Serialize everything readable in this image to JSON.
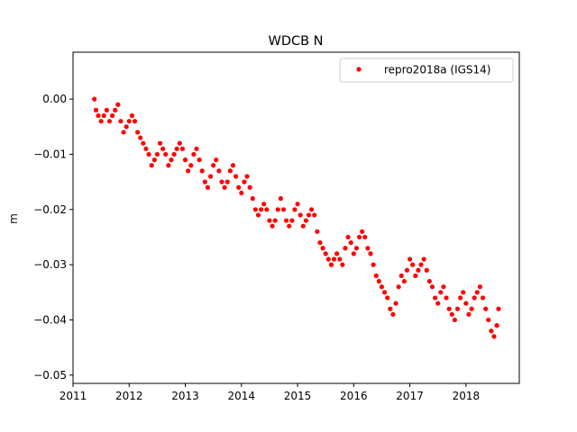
{
  "chart_data": {
    "type": "scatter",
    "title": "WDCB N",
    "xlabel": "",
    "ylabel": "m",
    "xlim": [
      2011.0,
      2018.95
    ],
    "ylim": [
      -0.0515,
      0.0085
    ],
    "xticks": [
      2011,
      2012,
      2013,
      2014,
      2015,
      2016,
      2017,
      2018
    ],
    "xtick_labels": [
      "2011",
      "2012",
      "2013",
      "2014",
      "2015",
      "2016",
      "2017",
      "2018"
    ],
    "yticks": [
      0.0,
      -0.01,
      -0.02,
      -0.03,
      -0.04,
      -0.05
    ],
    "ytick_labels": [
      "0.00",
      "−0.01",
      "−0.02",
      "−0.03",
      "−0.04",
      "−0.05"
    ],
    "grid": false,
    "legend_position": "top-right",
    "series": [
      {
        "name": "repro2018a (IGS14)",
        "color": "#ff0000",
        "marker": "circle",
        "x": [
          2011.38,
          2011.41,
          2011.45,
          2011.5,
          2011.55,
          2011.6,
          2011.65,
          2011.7,
          2011.75,
          2011.8,
          2011.85,
          2011.9,
          2011.95,
          2012.0,
          2012.05,
          2012.1,
          2012.15,
          2012.2,
          2012.25,
          2012.3,
          2012.35,
          2012.4,
          2012.45,
          2012.5,
          2012.55,
          2012.6,
          2012.65,
          2012.7,
          2012.75,
          2012.8,
          2012.85,
          2012.9,
          2012.95,
          2013.0,
          2013.05,
          2013.1,
          2013.15,
          2013.2,
          2013.25,
          2013.3,
          2013.35,
          2013.4,
          2013.45,
          2013.5,
          2013.55,
          2013.6,
          2013.65,
          2013.7,
          2013.75,
          2013.8,
          2013.85,
          2013.9,
          2013.95,
          2014.0,
          2014.05,
          2014.1,
          2014.15,
          2014.2,
          2014.25,
          2014.3,
          2014.35,
          2014.4,
          2014.45,
          2014.5,
          2014.55,
          2014.6,
          2014.65,
          2014.7,
          2014.75,
          2014.8,
          2014.85,
          2014.9,
          2014.95,
          2015.0,
          2015.05,
          2015.1,
          2015.15,
          2015.2,
          2015.25,
          2015.3,
          2015.35,
          2015.4,
          2015.45,
          2015.5,
          2015.55,
          2015.6,
          2015.65,
          2015.7,
          2015.75,
          2015.8,
          2015.85,
          2015.9,
          2015.95,
          2016.0,
          2016.05,
          2016.1,
          2016.15,
          2016.2,
          2016.25,
          2016.3,
          2016.35,
          2016.4,
          2016.45,
          2016.5,
          2016.55,
          2016.6,
          2016.65,
          2016.7,
          2016.75,
          2016.8,
          2016.85,
          2016.9,
          2016.95,
          2017.0,
          2017.05,
          2017.1,
          2017.15,
          2017.2,
          2017.25,
          2017.3,
          2017.35,
          2017.4,
          2017.45,
          2017.5,
          2017.55,
          2017.6,
          2017.65,
          2017.7,
          2017.75,
          2017.8,
          2017.85,
          2017.9,
          2017.95,
          2018.0,
          2018.05,
          2018.1,
          2018.15,
          2018.2,
          2018.25,
          2018.3,
          2018.35,
          2018.4,
          2018.45,
          2018.5,
          2018.55,
          2018.58
        ],
        "y": [
          0.0,
          -0.002,
          -0.003,
          -0.004,
          -0.003,
          -0.002,
          -0.004,
          -0.003,
          -0.002,
          -0.001,
          -0.004,
          -0.006,
          -0.005,
          -0.004,
          -0.003,
          -0.004,
          -0.006,
          -0.007,
          -0.008,
          -0.009,
          -0.01,
          -0.012,
          -0.011,
          -0.01,
          -0.008,
          -0.009,
          -0.01,
          -0.012,
          -0.011,
          -0.01,
          -0.009,
          -0.008,
          -0.009,
          -0.011,
          -0.013,
          -0.012,
          -0.01,
          -0.009,
          -0.011,
          -0.013,
          -0.015,
          -0.016,
          -0.014,
          -0.012,
          -0.011,
          -0.013,
          -0.015,
          -0.016,
          -0.015,
          -0.013,
          -0.012,
          -0.014,
          -0.016,
          -0.017,
          -0.015,
          -0.014,
          -0.016,
          -0.018,
          -0.02,
          -0.021,
          -0.02,
          -0.019,
          -0.02,
          -0.022,
          -0.023,
          -0.022,
          -0.02,
          -0.018,
          -0.02,
          -0.022,
          -0.023,
          -0.022,
          -0.02,
          -0.019,
          -0.021,
          -0.023,
          -0.022,
          -0.021,
          -0.02,
          -0.021,
          -0.024,
          -0.026,
          -0.027,
          -0.028,
          -0.029,
          -0.03,
          -0.029,
          -0.028,
          -0.029,
          -0.03,
          -0.027,
          -0.025,
          -0.026,
          -0.028,
          -0.027,
          -0.025,
          -0.024,
          -0.025,
          -0.027,
          -0.028,
          -0.03,
          -0.032,
          -0.033,
          -0.034,
          -0.035,
          -0.036,
          -0.038,
          -0.039,
          -0.037,
          -0.034,
          -0.032,
          -0.033,
          -0.031,
          -0.029,
          -0.03,
          -0.032,
          -0.031,
          -0.03,
          -0.029,
          -0.031,
          -0.033,
          -0.034,
          -0.036,
          -0.037,
          -0.035,
          -0.034,
          -0.036,
          -0.038,
          -0.039,
          -0.04,
          -0.038,
          -0.036,
          -0.035,
          -0.037,
          -0.039,
          -0.038,
          -0.036,
          -0.035,
          -0.034,
          -0.036,
          -0.038,
          -0.04,
          -0.042,
          -0.043,
          -0.041,
          -0.038
        ]
      }
    ]
  }
}
